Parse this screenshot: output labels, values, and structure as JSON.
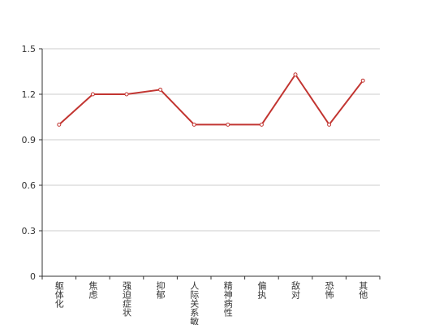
{
  "chart_data": {
    "type": "line",
    "categories": [
      "躯体化",
      "焦虑",
      "强迫症状",
      "抑郁",
      "人际关系敏感",
      "精神病性",
      "偏执",
      "敌对",
      "恐怖",
      "其他"
    ],
    "values": [
      1.0,
      1.2,
      1.2,
      1.23,
      1.0,
      1.0,
      1.0,
      1.33,
      1.0,
      1.29
    ],
    "color": "#c23531",
    "ylim": [
      0,
      1.5
    ],
    "yticks": [
      0,
      0.3,
      0.6,
      0.9,
      1.2,
      1.5
    ],
    "grid": true
  }
}
